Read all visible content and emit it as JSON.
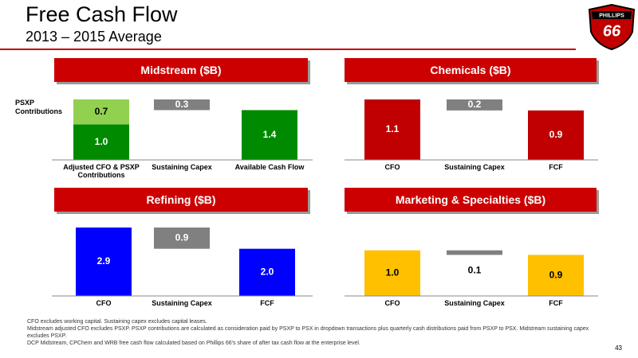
{
  "header": {
    "title": "Free Cash Flow",
    "subtitle": "2013 – 2015 Average",
    "page_number": "43"
  },
  "logo": {
    "name": "PHILLIPS",
    "number": "66"
  },
  "footnotes": [
    "CFO excludes working capital.  Sustaining capex excludes capital leases.",
    "Midstream adjusted CFO excludes PSXP.  PSXP contributions are calculated as consideration paid by PSXP to PSX in dropdown transactions plus quarterly cash distributions paid from PSXP to PSX.  Midstream sustaining capex excludes PSXP.",
    "DCP Midstream, CPChem and WRB free cash flow calculated based on Phillips 66's share of after tax cash flow at the enterprise level."
  ],
  "chart_data": [
    {
      "type": "waterfall",
      "title": "Midstream ($B)",
      "categories": [
        "Adjusted CFO & PSXP Contributions",
        "Sustaining Capex",
        "Available Cash Flow"
      ],
      "measure": [
        "absolute",
        "decrease",
        "total"
      ],
      "ylim": [
        0,
        1.7
      ],
      "series": [
        {
          "color": "#008a00",
          "values": [
            1.0,
            null,
            1.4
          ],
          "value_labels": [
            "1.0",
            null,
            "1.4"
          ]
        },
        {
          "name": "PSXP Contributions",
          "color": "#92d050",
          "values": [
            0.7,
            null,
            null
          ],
          "value_labels": [
            "0.7",
            null,
            null
          ]
        },
        {
          "color": "#808080",
          "values": [
            null,
            0.3,
            null
          ],
          "value_labels": [
            null,
            "0.3",
            null
          ]
        }
      ]
    },
    {
      "type": "waterfall",
      "title": "Chemicals ($B)",
      "categories": [
        "CFO",
        "Sustaining Capex",
        "FCF"
      ],
      "measure": [
        "absolute",
        "decrease",
        "total"
      ],
      "ylim": [
        0,
        1.1
      ],
      "series": [
        {
          "color": "#c00000",
          "values": [
            1.1,
            null,
            0.9
          ],
          "value_labels": [
            "1.1",
            null,
            "0.9"
          ]
        },
        {
          "color": "#808080",
          "values": [
            null,
            0.2,
            null
          ],
          "value_labels": [
            null,
            "0.2",
            null
          ]
        }
      ]
    },
    {
      "type": "waterfall",
      "title": "Refining ($B)",
      "categories": [
        "CFO",
        "Sustaining Capex",
        "FCF"
      ],
      "measure": [
        "absolute",
        "decrease",
        "total"
      ],
      "ylim": [
        0,
        2.9
      ],
      "series": [
        {
          "color": "#0000ff",
          "values": [
            2.9,
            null,
            2.0
          ],
          "value_labels": [
            "2.9",
            null,
            "2.0"
          ]
        },
        {
          "color": "#808080",
          "values": [
            null,
            0.9,
            null
          ],
          "value_labels": [
            null,
            "0.9",
            null
          ]
        }
      ]
    },
    {
      "type": "waterfall",
      "title": "Marketing & Specialties ($B)",
      "categories": [
        "CFO",
        "Sustaining Capex",
        "FCF"
      ],
      "measure": [
        "absolute",
        "decrease",
        "total"
      ],
      "ylim": [
        0,
        1.5
      ],
      "series": [
        {
          "color": "#ffc000",
          "values": [
            1.0,
            null,
            0.9
          ],
          "value_labels": [
            "1.0",
            null,
            "0.9"
          ]
        },
        {
          "color": "#808080",
          "values": [
            null,
            0.1,
            null
          ],
          "value_labels": [
            null,
            "0.1",
            null
          ]
        }
      ]
    }
  ]
}
